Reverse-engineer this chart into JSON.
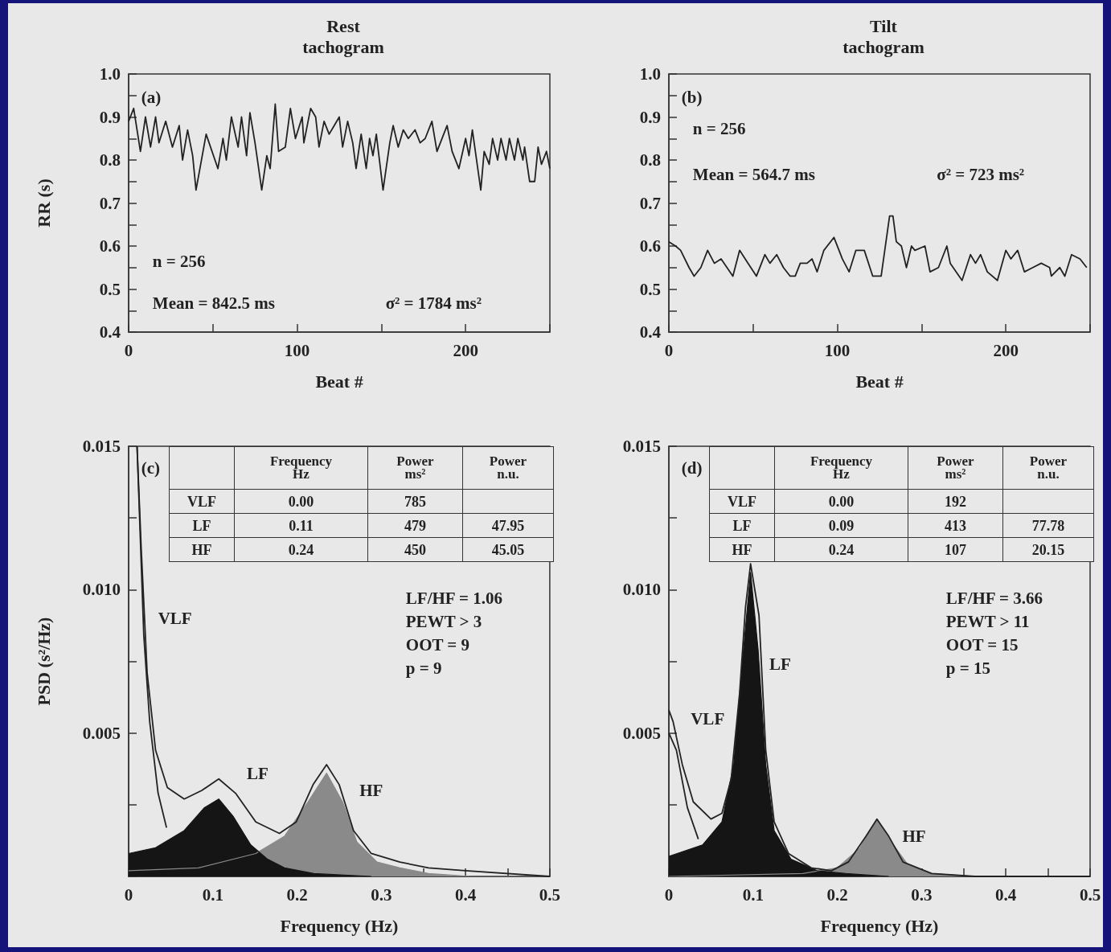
{
  "chart_data": [
    {
      "type": "line",
      "title": "Rest\ntachogram",
      "xlabel": "Beat #",
      "ylabel": "RR (s)",
      "marker": "none",
      "line_style": "solid",
      "xlim": [
        0,
        250
      ],
      "xticks": [
        0,
        {
          "value": 50,
          "label": null
        },
        100,
        {
          "value": 150,
          "label": null
        },
        200,
        {
          "value": 250,
          "label": null
        }
      ],
      "ylim": [
        0.4,
        1.0
      ],
      "yticks": [
        0.4,
        {
          "value": 0.45,
          "label": null
        },
        0.5,
        {
          "value": 0.55,
          "label": null
        },
        0.6,
        {
          "value": 0.65,
          "label": null
        },
        0.7,
        {
          "value": 0.75,
          "label": null
        },
        0.8,
        {
          "value": 0.85,
          "label": null
        },
        0.9,
        {
          "value": 0.95,
          "label": null
        },
        {
          "value": 1.0,
          "label": "1.0"
        }
      ],
      "series": [
        {
          "color": "#222222",
          "x": [
            0,
            3,
            7,
            10,
            13,
            16,
            18,
            22,
            26,
            30,
            32,
            35,
            38,
            40,
            46,
            53,
            56,
            58,
            61,
            65,
            67,
            70,
            72,
            75,
            79,
            82,
            84,
            87,
            89,
            93,
            96,
            99,
            103,
            104,
            108,
            111,
            113,
            116,
            119,
            122,
            125,
            127,
            130,
            133,
            135,
            138,
            141,
            143,
            145,
            147,
            151,
            155,
            157,
            160,
            163,
            166,
            170,
            173,
            176,
            180,
            183,
            185,
            189,
            192,
            196,
            200,
            202,
            204,
            209,
            211,
            214,
            216,
            219,
            221,
            224,
            226,
            229,
            231,
            234,
            235,
            238,
            241,
            243,
            245,
            248,
            250
          ],
          "values": [
            0.89,
            0.92,
            0.82,
            0.9,
            0.83,
            0.9,
            0.84,
            0.89,
            0.83,
            0.88,
            0.8,
            0.87,
            0.81,
            0.73,
            0.86,
            0.78,
            0.85,
            0.8,
            0.9,
            0.83,
            0.9,
            0.81,
            0.91,
            0.84,
            0.73,
            0.81,
            0.78,
            0.93,
            0.82,
            0.83,
            0.92,
            0.85,
            0.9,
            0.84,
            0.92,
            0.9,
            0.83,
            0.89,
            0.86,
            0.88,
            0.9,
            0.83,
            0.89,
            0.84,
            0.78,
            0.86,
            0.78,
            0.85,
            0.81,
            0.86,
            0.73,
            0.84,
            0.88,
            0.83,
            0.87,
            0.85,
            0.87,
            0.84,
            0.85,
            0.89,
            0.82,
            0.84,
            0.88,
            0.82,
            0.78,
            0.85,
            0.81,
            0.87,
            0.73,
            0.82,
            0.79,
            0.85,
            0.8,
            0.85,
            0.8,
            0.85,
            0.8,
            0.85,
            0.8,
            0.83,
            0.75,
            0.75,
            0.83,
            0.79,
            0.82,
            0.78
          ]
        }
      ],
      "annotations": [
        "(a)",
        "n = 256",
        "Mean = 842.5 ms",
        "σ² = 1784 ms²"
      ]
    },
    {
      "type": "line",
      "title": "Tilt\ntachogram",
      "xlabel": "Beat #",
      "marker": "none",
      "line_style": "solid",
      "xlim": [
        0,
        250
      ],
      "xticks": [
        0,
        {
          "value": 50,
          "label": null
        },
        100,
        {
          "value": 150,
          "label": null
        },
        200,
        {
          "value": 250,
          "label": null
        }
      ],
      "ylim": [
        0.4,
        1.0
      ],
      "yticks": [
        0.4,
        {
          "value": 0.45,
          "label": null
        },
        0.5,
        {
          "value": 0.55,
          "label": null
        },
        0.6,
        {
          "value": 0.65,
          "label": null
        },
        0.7,
        {
          "value": 0.75,
          "label": null
        },
        0.8,
        {
          "value": 0.85,
          "label": null
        },
        0.9,
        {
          "value": 0.95,
          "label": null
        },
        {
          "value": 1.0,
          "label": "1.0"
        }
      ],
      "series": [
        {
          "color": "#222222",
          "x": [
            0,
            4,
            7,
            12,
            15,
            19,
            23,
            27,
            31,
            38,
            42,
            47,
            52,
            57,
            60,
            64,
            68,
            72,
            75,
            78,
            82,
            85,
            88,
            92,
            98,
            103,
            107,
            111,
            116,
            121,
            126,
            131,
            133,
            135,
            138,
            141,
            144,
            146,
            152,
            155,
            160,
            165,
            167,
            174,
            179,
            182,
            185,
            189,
            195,
            200,
            203,
            207,
            211,
            216,
            221,
            226,
            227,
            232,
            235,
            239,
            244,
            248
          ],
          "values": [
            0.61,
            0.6,
            0.59,
            0.55,
            0.53,
            0.55,
            0.59,
            0.56,
            0.57,
            0.53,
            0.59,
            0.56,
            0.53,
            0.58,
            0.56,
            0.58,
            0.55,
            0.53,
            0.53,
            0.56,
            0.56,
            0.57,
            0.54,
            0.59,
            0.62,
            0.57,
            0.54,
            0.59,
            0.59,
            0.53,
            0.53,
            0.67,
            0.67,
            0.61,
            0.6,
            0.55,
            0.6,
            0.59,
            0.6,
            0.54,
            0.55,
            0.6,
            0.56,
            0.52,
            0.58,
            0.56,
            0.58,
            0.54,
            0.52,
            0.59,
            0.57,
            0.59,
            0.54,
            0.55,
            0.56,
            0.55,
            0.53,
            0.55,
            0.53,
            0.58,
            0.57,
            0.55
          ]
        }
      ],
      "annotations": [
        "(b)",
        "n = 256",
        "Mean = 564.7 ms",
        "σ² = 723 ms²"
      ]
    },
    {
      "type": "line",
      "xlabel": "Frequency (Hz)",
      "ylabel": "PSD (s²/Hz)",
      "marker": "none",
      "line_style": "solid",
      "xlim": [
        0,
        0.5
      ],
      "xticks": [
        0,
        {
          "value": 0.05,
          "label": null
        },
        0.1,
        {
          "value": 0.15,
          "label": null
        },
        0.2,
        {
          "value": 0.25,
          "label": null
        },
        0.3,
        {
          "value": 0.35,
          "label": null
        },
        0.4,
        {
          "value": 0.45,
          "label": null
        },
        0.5
      ],
      "ylim": [
        0,
        0.015
      ],
      "yticks": [
        {
          "value": 0,
          "label": null
        },
        {
          "value": 0.0025,
          "label": null
        },
        0.005,
        {
          "value": 0.0075,
          "label": null
        },
        {
          "value": 0.01,
          "label": "0.010"
        },
        {
          "value": 0.0125,
          "label": null
        },
        0.015
      ],
      "series": [
        {
          "type": "area",
          "color": "#8a8a8a",
          "x": [
            0,
            0.083,
            0.151,
            0.185,
            0.213,
            0.235,
            0.254,
            0.271,
            0.295,
            0.322,
            0.356,
            0.407,
            0.5
          ],
          "values": [
            0.0002,
            0.0003,
            0.0008,
            0.0014,
            0.0026,
            0.0036,
            0.0026,
            0.0012,
            0.0005,
            0.0003,
            0.0001,
            0,
            0
          ]
        },
        {
          "type": "area",
          "color": "#151515",
          "x": [
            0,
            0.032,
            0.066,
            0.09,
            0.107,
            0.124,
            0.145,
            0.165,
            0.185,
            0.22,
            0.288
          ],
          "values": [
            0.0008,
            0.001,
            0.0016,
            0.0024,
            0.0027,
            0.0021,
            0.0011,
            0.0006,
            0.0003,
            0.0001,
            0
          ]
        },
        {
          "type": "line",
          "color": "#222222",
          "x": [
            0.01,
            0.018,
            0.025,
            0.035,
            0.045
          ],
          "values": [
            0.015,
            0.0084,
            0.0054,
            0.0029,
            0.0017
          ]
        },
        {
          "type": "line",
          "color": "#222222",
          "x": [
            0.01,
            0.015,
            0.022,
            0.032,
            0.046,
            0.066,
            0.087,
            0.107,
            0.127,
            0.151,
            0.179,
            0.199,
            0.219,
            0.235,
            0.25,
            0.267,
            0.288,
            0.322,
            0.356,
            0.4,
            0.5
          ],
          "values": [
            0.015,
            0.0114,
            0.0071,
            0.0044,
            0.0031,
            0.0027,
            0.003,
            0.0034,
            0.0029,
            0.0019,
            0.0015,
            0.0019,
            0.0032,
            0.0039,
            0.0032,
            0.0016,
            0.0008,
            0.0005,
            0.0003,
            0.0002,
            0
          ]
        }
      ],
      "annotations": [
        "(c)",
        "Frequency\nHz",
        "Power\nms²",
        "Power\nn.u.",
        "VLF",
        "0.00",
        "785",
        "LF",
        "0.11",
        "479",
        "47.95",
        "HF",
        "0.24",
        "450",
        "45.05",
        "LF/HF = 1.06",
        "PEWT > 3",
        "OOT = 9",
        "p = 9",
        "VLF",
        "LF",
        "HF"
      ]
    },
    {
      "type": "line",
      "xlabel": "Frequency (Hz)",
      "marker": "none",
      "line_style": "solid",
      "xlim": [
        0,
        0.5
      ],
      "xticks": [
        0,
        {
          "value": 0.05,
          "label": null
        },
        0.1,
        {
          "value": 0.15,
          "label": null
        },
        0.2,
        {
          "value": 0.25,
          "label": null
        },
        0.3,
        {
          "value": 0.35,
          "label": null
        },
        0.4,
        {
          "value": 0.45,
          "label": null
        },
        0.5
      ],
      "ylim": [
        0,
        0.015
      ],
      "yticks": [
        {
          "value": 0,
          "label": null
        },
        {
          "value": 0.0025,
          "label": null
        },
        0.005,
        {
          "value": 0.0075,
          "label": null
        },
        {
          "value": 0.01,
          "label": "0.010"
        },
        {
          "value": 0.0125,
          "label": null
        },
        0.015
      ],
      "series": [
        {
          "type": "area",
          "color": "#8a8a8a",
          "x": [
            0,
            0.159,
            0.2,
            0.227,
            0.247,
            0.264,
            0.284,
            0.312,
            0.363
          ],
          "values": [
            0,
            0.0001,
            0.0003,
            0.001,
            0.002,
            0.0012,
            0.0004,
            0.0001,
            0
          ]
        },
        {
          "type": "area",
          "color": "#151515",
          "x": [
            0,
            0.04,
            0.063,
            0.077,
            0.087,
            0.097,
            0.106,
            0.115,
            0.125,
            0.145,
            0.176,
            0.21,
            0.261
          ],
          "values": [
            0.0007,
            0.0011,
            0.0019,
            0.0039,
            0.0074,
            0.0106,
            0.0079,
            0.0039,
            0.0016,
            0.0006,
            0.0002,
            0.0001,
            0
          ]
        },
        {
          "type": "line",
          "color": "#222222",
          "x": [
            0,
            0.009,
            0.022,
            0.035
          ],
          "values": [
            0.005,
            0.0044,
            0.0024,
            0.0013
          ]
        },
        {
          "type": "line",
          "color": "#222222",
          "x": [
            0,
            0.005,
            0.016,
            0.029,
            0.05,
            0.063,
            0.074,
            0.084,
            0.091,
            0.097,
            0.107,
            0.115,
            0.125,
            0.142,
            0.169,
            0.193,
            0.213,
            0.234,
            0.247,
            0.261,
            0.278,
            0.312,
            0.363,
            0.5
          ],
          "values": [
            0.0058,
            0.0054,
            0.0039,
            0.0026,
            0.002,
            0.0022,
            0.0034,
            0.0064,
            0.0094,
            0.0109,
            0.0091,
            0.0044,
            0.0019,
            0.0008,
            0.0003,
            0.0002,
            0.0005,
            0.0014,
            0.002,
            0.0014,
            0.0005,
            0.0001,
            0,
            0
          ]
        }
      ],
      "annotations": [
        "(d)",
        "Frequency\nHz",
        "Power\nms²",
        "Power\nn.u.",
        "VLF",
        "0.00",
        "192",
        "LF",
        "0.09",
        "413",
        "77.78",
        "HF",
        "0.24",
        "107",
        "20.15",
        "LF/HF = 3.66",
        "PEWT > 11",
        "OOT = 15",
        "p = 15",
        "VLF",
        "LF",
        "HF"
      ]
    }
  ]
}
